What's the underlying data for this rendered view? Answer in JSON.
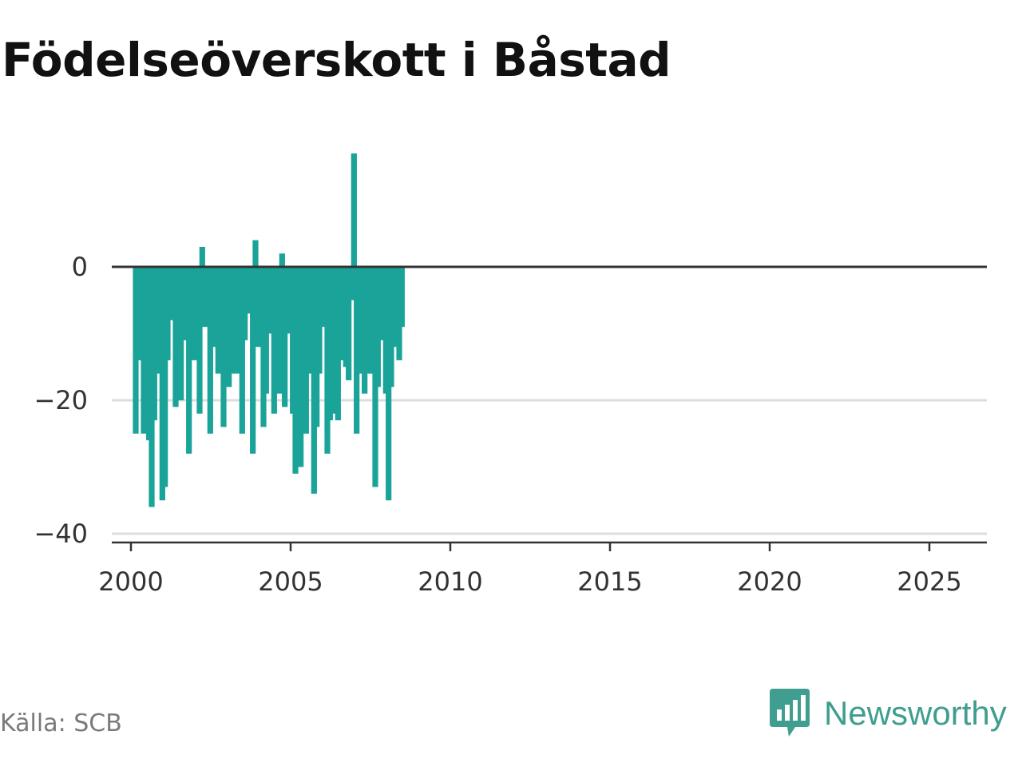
{
  "title": "Födelseöverskott i Båstad",
  "source": "Källa: SCB",
  "brand": "Newsworthy",
  "colors": {
    "bar": "#1aa398",
    "zero_line": "#333333",
    "grid": "#dddddd",
    "brand": "#3f9e8f"
  },
  "icons": {
    "logo": "bar-chart-speech-bubble-icon"
  },
  "chart_data": {
    "type": "bar",
    "title": "Födelseöverskott i Båstad",
    "xlabel": "",
    "ylabel": "",
    "frequency": "monthly",
    "x_start": "2000-01",
    "ylim": [
      -40,
      20
    ],
    "yticks": [
      0,
      -20,
      -40
    ],
    "ytick_labels": [
      "0",
      "−20",
      "−40"
    ],
    "xticks": [
      2000,
      2005,
      2010,
      2015,
      2020,
      2025
    ],
    "xlim": [
      1999.4,
      2026.8
    ],
    "grid": true,
    "values": [
      -25,
      -13,
      -14,
      -25,
      -23,
      -26,
      -36,
      -23,
      -16,
      -14,
      -35,
      -33,
      -14,
      -8,
      -4,
      -21,
      -18,
      -20,
      -8,
      -11,
      -28,
      -12,
      -14,
      -13,
      -22,
      3,
      -9,
      -2,
      -25,
      -12,
      -1,
      -16,
      -10,
      -24,
      -17,
      -18,
      -16,
      -4,
      -16,
      -13,
      -25,
      -11,
      -6,
      -7,
      -28,
      4,
      -12,
      -12,
      -24,
      -19,
      -10,
      -6,
      -22,
      -16,
      -19,
      2,
      -21,
      -8,
      -10,
      -22,
      -31,
      -29,
      -30,
      -18,
      -25,
      -6,
      -16,
      -34,
      -24,
      -16,
      -7,
      -9,
      -28,
      -23,
      -4,
      -22,
      -23,
      -7,
      -14,
      -15,
      -17,
      -5,
      17,
      -25,
      -16,
      -15,
      -19,
      -3,
      -16,
      -16,
      -33,
      -18,
      -5,
      -11,
      -19,
      -35,
      -18,
      -12,
      -2,
      -14,
      -9
    ]
  }
}
